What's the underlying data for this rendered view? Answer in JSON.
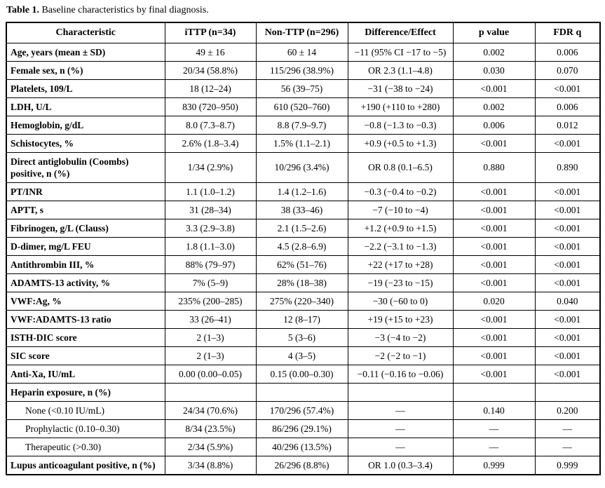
{
  "title": {
    "label": "Table 1.",
    "text": " Baseline characteristics by final diagnosis."
  },
  "table": {
    "columns": [
      "Characteristic",
      "iTTP (n=34)",
      "Non-TTP (n=296)",
      "Difference/Effect",
      "p value",
      "FDR q"
    ],
    "rows": [
      {
        "characteristic": "Age, years (mean ± SD)",
        "bold": true,
        "indent": false,
        "ittp": "49 ± 16",
        "nonttp": "60 ± 14",
        "diff": "−11 (95% CI −17 to −5)",
        "p": "0.002",
        "q": "0.006"
      },
      {
        "characteristic": "Female sex, n (%)",
        "bold": true,
        "indent": false,
        "ittp": "20/34 (58.8%)",
        "nonttp": "115/296 (38.9%)",
        "diff": "OR 2.3 (1.1–4.8)",
        "p": "0.030",
        "q": "0.070"
      },
      {
        "characteristic": "Platelets, 109/L",
        "bold": true,
        "indent": false,
        "ittp": "18 (12–24)",
        "nonttp": "56 (39–75)",
        "diff": "−31 (−38 to −24)",
        "p": "<0.001",
        "q": "<0.001"
      },
      {
        "characteristic": "LDH, U/L",
        "bold": true,
        "indent": false,
        "ittp": "830 (720–950)",
        "nonttp": "610 (520–760)",
        "diff": "+190 (+110 to +280)",
        "p": "0.002",
        "q": "0.006"
      },
      {
        "characteristic": "Hemoglobin, g/dL",
        "bold": true,
        "indent": false,
        "ittp": "8.0 (7.3–8.7)",
        "nonttp": "8.8 (7.9–9.7)",
        "diff": "−0.8 (−1.3 to −0.3)",
        "p": "0.006",
        "q": "0.012"
      },
      {
        "characteristic": "Schistocytes, %",
        "bold": true,
        "indent": false,
        "ittp": "2.6% (1.8–3.4)",
        "nonttp": "1.5% (1.1–2.1)",
        "diff": "+0.9 (+0.5 to +1.3)",
        "p": "<0.001",
        "q": "<0.001"
      },
      {
        "characteristic": "Direct antiglobulin (Coombs) positive, n (%)",
        "bold": true,
        "indent": false,
        "ittp": "1/34 (2.9%)",
        "nonttp": "10/296 (3.4%)",
        "diff": "OR 0.8 (0.1–6.5)",
        "p": "0.880",
        "q": "0.890"
      },
      {
        "characteristic": "PT/INR",
        "bold": true,
        "indent": false,
        "ittp": "1.1 (1.0–1.2)",
        "nonttp": "1.4 (1.2–1.6)",
        "diff": "−0.3 (−0.4 to −0.2)",
        "p": "<0.001",
        "q": "<0.001"
      },
      {
        "characteristic": "APTT, s",
        "bold": true,
        "indent": false,
        "ittp": "31 (28–34)",
        "nonttp": "38 (33–46)",
        "diff": "−7 (−10 to −4)",
        "p": "<0.001",
        "q": "<0.001"
      },
      {
        "characteristic": "Fibrinogen, g/L (Clauss)",
        "bold": true,
        "indent": false,
        "ittp": "3.3 (2.9–3.8)",
        "nonttp": "2.1 (1.5–2.6)",
        "diff": "+1.2 (+0.9 to +1.5)",
        "p": "<0.001",
        "q": "<0.001"
      },
      {
        "characteristic": "D-dimer, mg/L FEU",
        "bold": true,
        "indent": false,
        "ittp": "1.8 (1.1–3.0)",
        "nonttp": "4.5 (2.8–6.9)",
        "diff": "−2.2 (−3.1 to −1.3)",
        "p": "<0.001",
        "q": "<0.001"
      },
      {
        "characteristic": "Antithrombin III, %",
        "bold": true,
        "indent": false,
        "ittp": "88% (79–97)",
        "nonttp": "62% (51–76)",
        "diff": "+22 (+17 to +28)",
        "p": "<0.001",
        "q": "<0.001"
      },
      {
        "characteristic": "ADAMTS-13 activity, %",
        "bold": true,
        "indent": false,
        "ittp": "7% (5–9)",
        "nonttp": "28% (18–38)",
        "diff": "−19 (−23 to −15)",
        "p": "<0.001",
        "q": "<0.001"
      },
      {
        "characteristic": "VWF:Ag, %",
        "bold": true,
        "indent": false,
        "ittp": "235% (200–285)",
        "nonttp": "275% (220–340)",
        "diff": "−30 (−60 to 0)",
        "p": "0.020",
        "q": "0.040"
      },
      {
        "characteristic": "VWF:ADAMTS-13 ratio",
        "bold": true,
        "indent": false,
        "ittp": "33 (26–41)",
        "nonttp": "12 (8–17)",
        "diff": "+19 (+15 to +23)",
        "p": "<0.001",
        "q": "<0.001"
      },
      {
        "characteristic": "ISTH-DIC score",
        "bold": true,
        "indent": false,
        "ittp": "2 (1–3)",
        "nonttp": "5 (3–6)",
        "diff": "−3 (−4 to −2)",
        "p": "<0.001",
        "q": "<0.001"
      },
      {
        "characteristic": "SIC score",
        "bold": true,
        "indent": false,
        "ittp": "2 (1–3)",
        "nonttp": "4 (3–5)",
        "diff": "−2 (−2 to −1)",
        "p": "<0.001",
        "q": "<0.001"
      },
      {
        "characteristic": "Anti-Xa, IU/mL",
        "bold": true,
        "indent": false,
        "ittp": "0.00 (0.00–0.05)",
        "nonttp": "0.15 (0.00–0.30)",
        "diff": "−0.11 (−0.16 to −0.06)",
        "p": "<0.001",
        "q": "<0.001"
      },
      {
        "characteristic": "Heparin exposure, n (%)",
        "bold": true,
        "indent": false,
        "ittp": "",
        "nonttp": "",
        "diff": "",
        "p": "",
        "q": ""
      },
      {
        "characteristic": "None (<0.10 IU/mL)",
        "bold": false,
        "indent": true,
        "ittp": "24/34 (70.6%)",
        "nonttp": "170/296 (57.4%)",
        "diff": "—",
        "p": "0.140",
        "q": "0.200"
      },
      {
        "characteristic": "Prophylactic (0.10–0.30)",
        "bold": false,
        "indent": true,
        "ittp": "8/34 (23.5%)",
        "nonttp": "86/296 (29.1%)",
        "diff": "—",
        "p": "—",
        "q": "—"
      },
      {
        "characteristic": "Therapeutic (>0.30)",
        "bold": false,
        "indent": true,
        "ittp": "2/34 (5.9%)",
        "nonttp": "40/296 (13.5%)",
        "diff": "—",
        "p": "—",
        "q": "—"
      },
      {
        "characteristic": "Lupus anticoagulant positive, n (%)",
        "bold": true,
        "indent": false,
        "ittp": "3/34 (8.8%)",
        "nonttp": "26/296 (8.8%)",
        "diff": "OR 1.0 (0.3–3.4)",
        "p": "0.999",
        "q": "0.999"
      }
    ]
  }
}
